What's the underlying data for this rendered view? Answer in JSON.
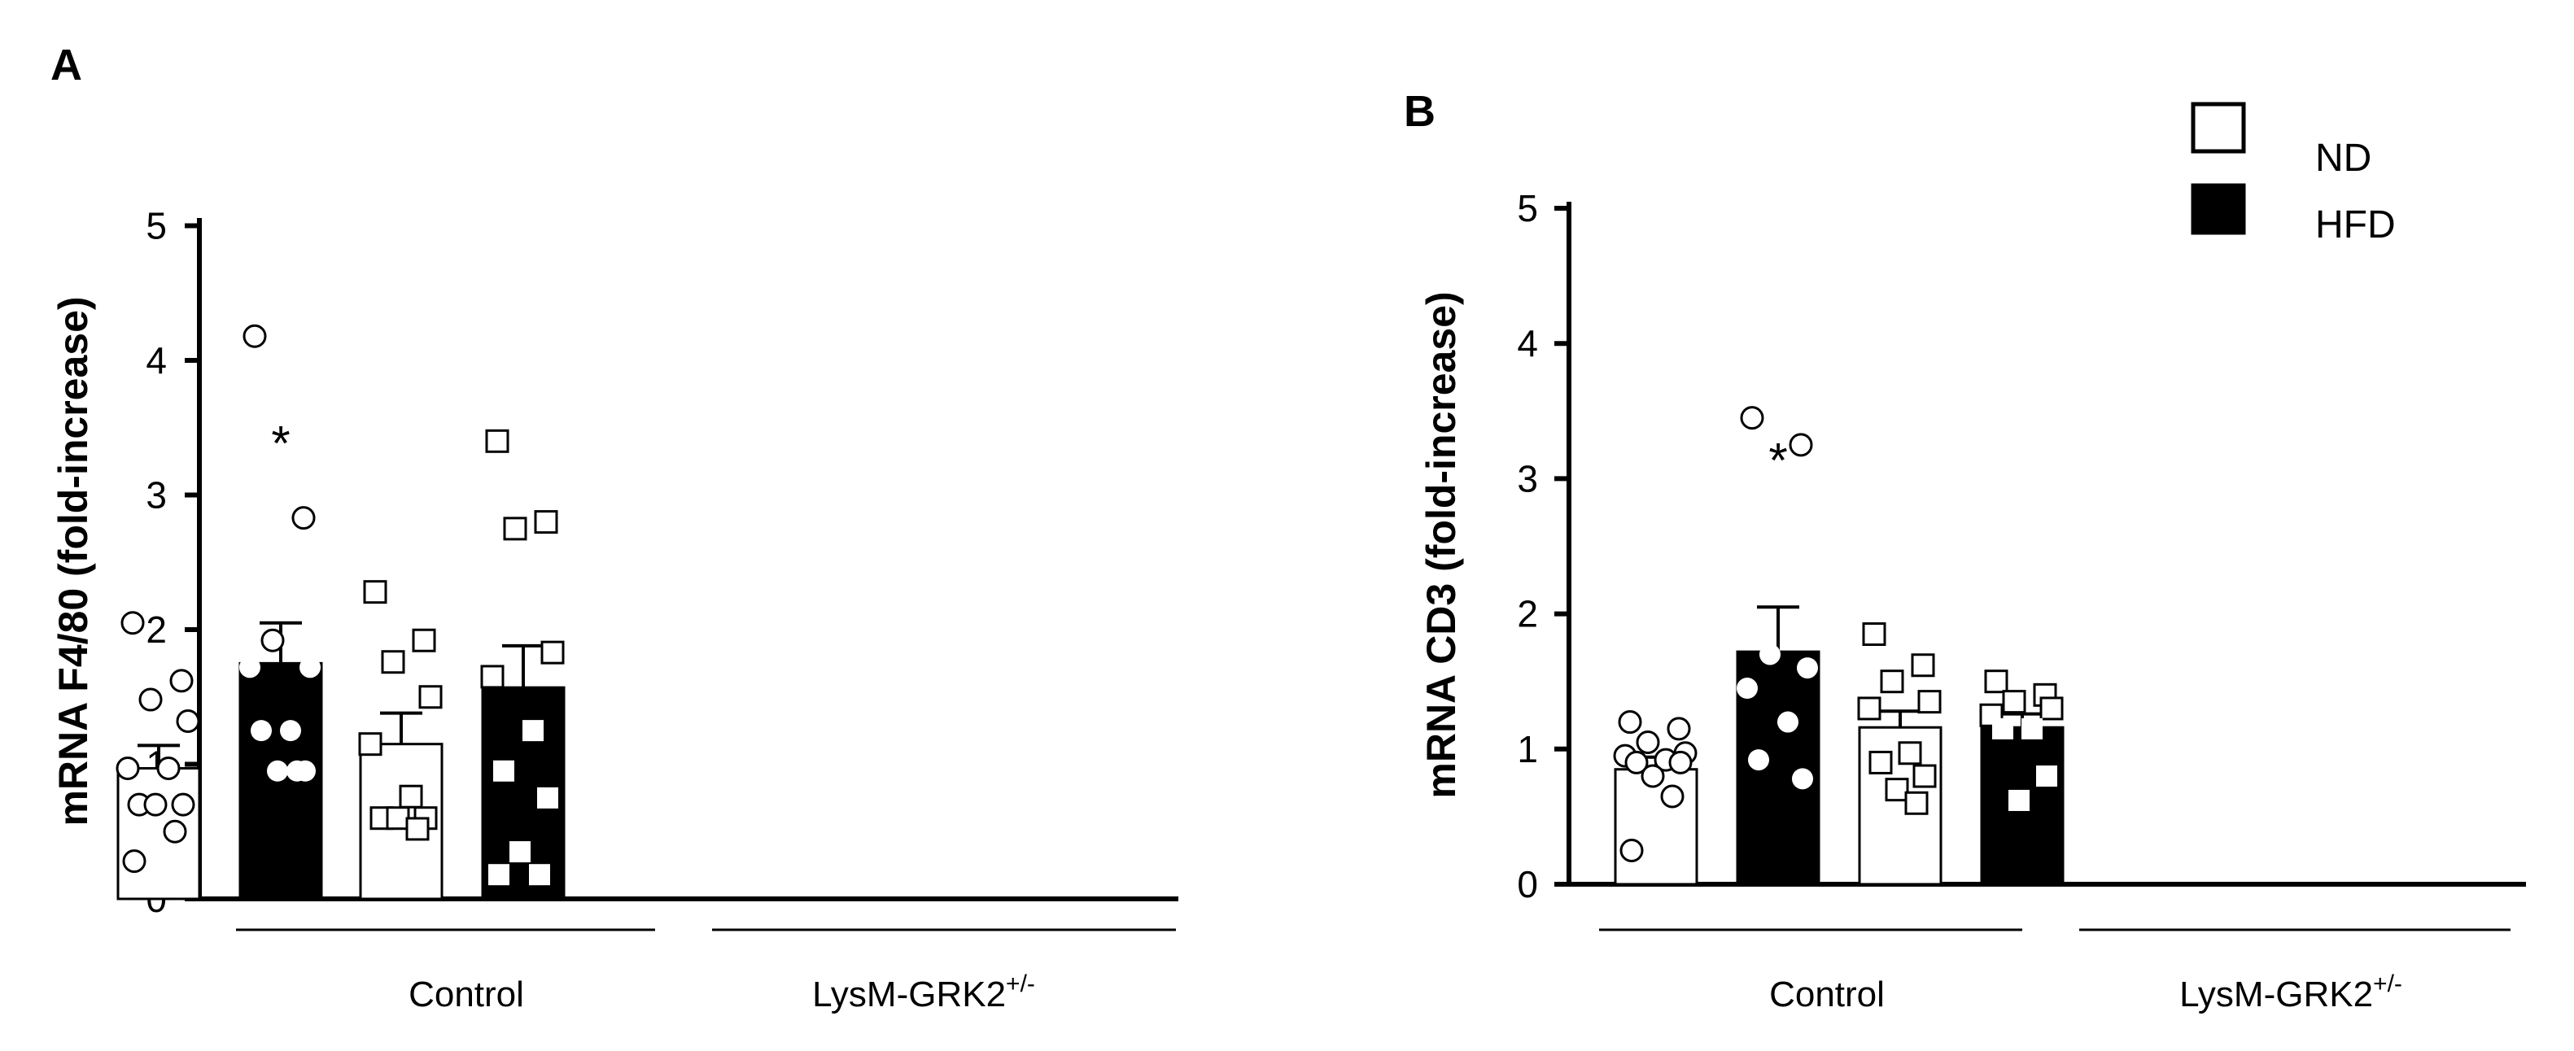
{
  "chart_data": [
    {
      "panel": "A",
      "type": "bar",
      "ylabel": "mRNA F4/80 (fold-increase)",
      "ylim": [
        0,
        5
      ],
      "yticks": [
        "0",
        "1",
        "2",
        "3",
        "4",
        "5"
      ],
      "groups": [
        {
          "label": "Control",
          "sup": ""
        },
        {
          "label": "LysM-GRK2",
          "sup": "+/-"
        }
      ],
      "bars": [
        {
          "group": 0,
          "series": "ND",
          "mean": 0.97,
          "sem": 0.17,
          "marker": "circle",
          "points": [
            2.05,
            1.62,
            1.48,
            1.32,
            0.97,
            0.97,
            0.7,
            0.7,
            0.7,
            0.5,
            0.28
          ]
        },
        {
          "group": 0,
          "series": "HFD",
          "mean": 1.75,
          "sem": 0.3,
          "marker": "circle",
          "annotation": "*",
          "points": [
            4.18,
            2.83,
            1.92,
            1.72,
            1.72,
            1.25,
            1.25,
            0.95,
            0.95,
            0.95
          ]
        },
        {
          "group": 1,
          "series": "ND",
          "mean": 1.15,
          "sem": 0.23,
          "marker": "square",
          "points": [
            2.28,
            1.92,
            1.76,
            1.5,
            1.15,
            0.76,
            0.6,
            0.6,
            0.6,
            0.52
          ]
        },
        {
          "group": 1,
          "series": "HFD",
          "mean": 1.57,
          "sem": 0.31,
          "marker": "square",
          "points": [
            3.4,
            2.8,
            2.75,
            1.83,
            1.65,
            1.25,
            0.95,
            0.75,
            0.35,
            0.18,
            0.18
          ]
        }
      ]
    },
    {
      "panel": "B",
      "type": "bar",
      "ylabel": "mRNA CD3 (fold-increase)",
      "ylim": [
        0,
        5
      ],
      "yticks": [
        "0",
        "1",
        "2",
        "3",
        "4",
        "5"
      ],
      "groups": [
        {
          "label": "Control",
          "sup": ""
        },
        {
          "label": "LysM-GRK2",
          "sup": "+/-"
        }
      ],
      "bars": [
        {
          "group": 0,
          "series": "ND",
          "mean": 0.85,
          "sem": 0.09,
          "marker": "circle",
          "points": [
            1.2,
            1.15,
            1.05,
            0.97,
            0.95,
            0.92,
            0.9,
            0.9,
            0.8,
            0.65,
            0.25
          ]
        },
        {
          "group": 0,
          "series": "HFD",
          "mean": 1.72,
          "sem": 0.33,
          "marker": "circle",
          "annotation": "*",
          "points": [
            3.45,
            3.25,
            1.7,
            1.6,
            1.45,
            1.2,
            0.92,
            0.78
          ]
        },
        {
          "group": 1,
          "series": "ND",
          "mean": 1.16,
          "sem": 0.12,
          "marker": "square",
          "points": [
            1.85,
            1.62,
            1.5,
            1.35,
            1.3,
            0.97,
            0.9,
            0.8,
            0.7,
            0.6
          ]
        },
        {
          "group": 1,
          "series": "HFD",
          "mean": 1.16,
          "sem": 0.1,
          "marker": "square",
          "points": [
            1.5,
            1.4,
            1.35,
            1.3,
            1.25,
            1.15,
            1.15,
            0.8,
            0.62
          ]
        }
      ]
    }
  ],
  "legend": [
    {
      "label": "ND",
      "fill": "#ffffff"
    },
    {
      "label": "HFD",
      "fill": "#000000"
    }
  ],
  "colors": {
    "nd_fill": "#ffffff",
    "hfd_fill": "#000000",
    "stroke": "#000000",
    "hfd_marker_fill": "#ffffff"
  }
}
